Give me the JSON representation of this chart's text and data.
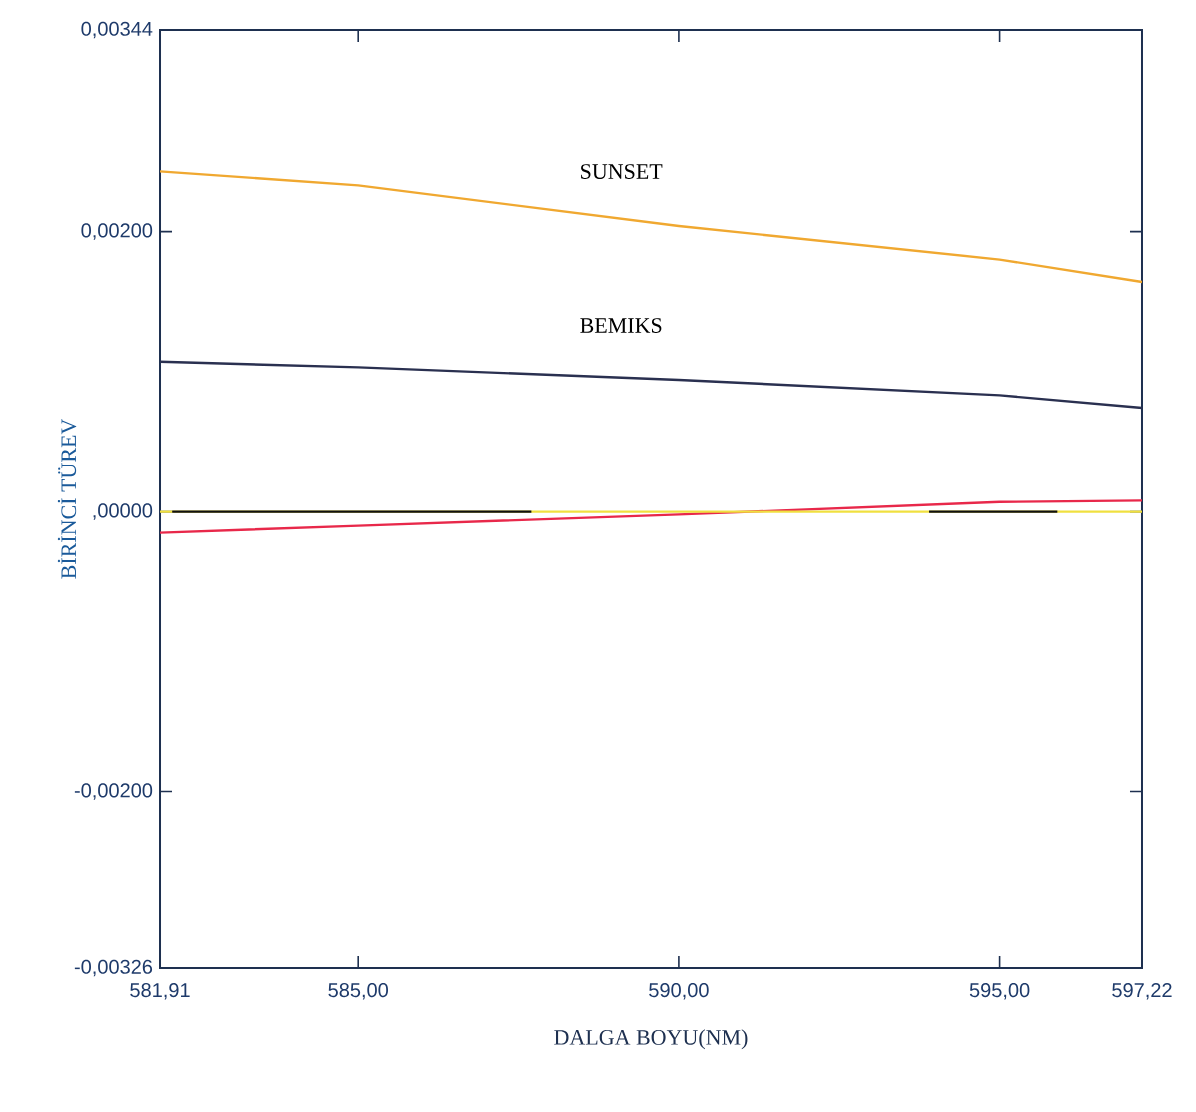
{
  "chart_data": {
    "type": "line",
    "xlabel": "DALGA BOYU(NM)",
    "ylabel": "BİRİNCİ TÜREV",
    "xlim": [
      581.91,
      597.22
    ],
    "ylim": [
      -0.00326,
      0.00344
    ],
    "xticks": [
      {
        "value": 581.91,
        "label": "581,91"
      },
      {
        "value": 585.0,
        "label": "585,00"
      },
      {
        "value": 590.0,
        "label": "590,00"
      },
      {
        "value": 595.0,
        "label": "595,00"
      },
      {
        "value": 597.22,
        "label": "597,22"
      }
    ],
    "yticks": [
      {
        "value": -0.00326,
        "label": "-0,00326"
      },
      {
        "value": -0.002,
        "label": "-0,00200"
      },
      {
        "value": 0.0,
        "label": ",00000"
      },
      {
        "value": 0.002,
        "label": "0,00200"
      },
      {
        "value": 0.00344,
        "label": "0,00344"
      }
    ],
    "grid": false,
    "legend": false,
    "marker": "none",
    "line_style": "solid",
    "series": [
      {
        "name": "SUNSET",
        "color": "#f0a830",
        "x": [
          581.91,
          585.0,
          590.0,
          595.0,
          597.22
        ],
        "values": [
          0.00243,
          0.00233,
          0.00204,
          0.0018,
          0.00164
        ]
      },
      {
        "name": "BEMIKS",
        "color": "#2a3050",
        "x": [
          581.91,
          585.0,
          590.0,
          595.0,
          597.22
        ],
        "values": [
          0.00107,
          0.00103,
          0.00094,
          0.00083,
          0.00074
        ]
      },
      {
        "color": "#e8284a",
        "x": [
          581.91,
          585.0,
          590.0,
          595.0,
          597.22
        ],
        "values": [
          -0.00015,
          -0.0001,
          -2e-05,
          7e-05,
          8e-05
        ]
      },
      {
        "color": "#f0e040",
        "x": [
          581.91,
          597.22
        ],
        "values": [
          0.0,
          0.0
        ]
      },
      {
        "color": "#101010",
        "x": [
          582.1,
          587.7,
          590.0,
          593.9,
          595.9
        ],
        "values": [
          0.0,
          0.0,
          null,
          0.0,
          0.0
        ]
      }
    ]
  }
}
